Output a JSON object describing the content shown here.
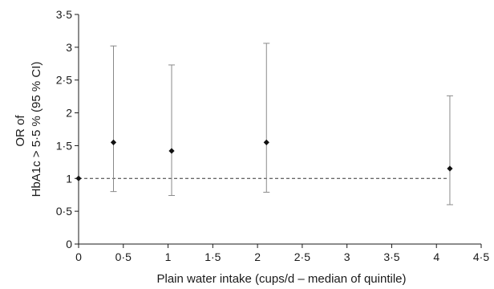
{
  "chart_data": {
    "type": "scatter",
    "title": "",
    "xlabel": "Plain water intake (cups/d – median of quintile)",
    "ylabel_lines": [
      "OR of",
      "HbA1c > 5·5 % (95 % CI)"
    ],
    "xlim": [
      0,
      4.5
    ],
    "ylim": [
      0,
      3.5
    ],
    "x_ticks": [
      {
        "value": 0,
        "label": "0"
      },
      {
        "value": 0.5,
        "label": "0·5"
      },
      {
        "value": 1,
        "label": "1"
      },
      {
        "value": 1.5,
        "label": "1·5"
      },
      {
        "value": 2,
        "label": "2"
      },
      {
        "value": 2.5,
        "label": "2·5"
      },
      {
        "value": 3,
        "label": "3"
      },
      {
        "value": 3.5,
        "label": "3·5"
      },
      {
        "value": 4,
        "label": "4"
      },
      {
        "value": 4.5,
        "label": "4·5"
      }
    ],
    "y_ticks": [
      {
        "value": 0,
        "label": "0"
      },
      {
        "value": 0.5,
        "label": "0·5"
      },
      {
        "value": 1,
        "label": "1"
      },
      {
        "value": 1.5,
        "label": "1·5"
      },
      {
        "value": 2,
        "label": "2"
      },
      {
        "value": 2.5,
        "label": "2·5"
      },
      {
        "value": 3,
        "label": "3"
      },
      {
        "value": 3.5,
        "label": "3·5"
      }
    ],
    "reference_line": {
      "y": 1,
      "style": "dashed"
    },
    "points": [
      {
        "x": 0.0,
        "or": 1.0,
        "lower": null,
        "upper": null
      },
      {
        "x": 0.39,
        "or": 1.55,
        "lower": 0.8,
        "upper": 3.02
      },
      {
        "x": 1.04,
        "or": 1.42,
        "lower": 0.74,
        "upper": 2.73
      },
      {
        "x": 2.1,
        "or": 1.55,
        "lower": 0.79,
        "upper": 3.06
      },
      {
        "x": 4.15,
        "or": 1.15,
        "lower": 0.6,
        "upper": 2.26
      }
    ]
  }
}
